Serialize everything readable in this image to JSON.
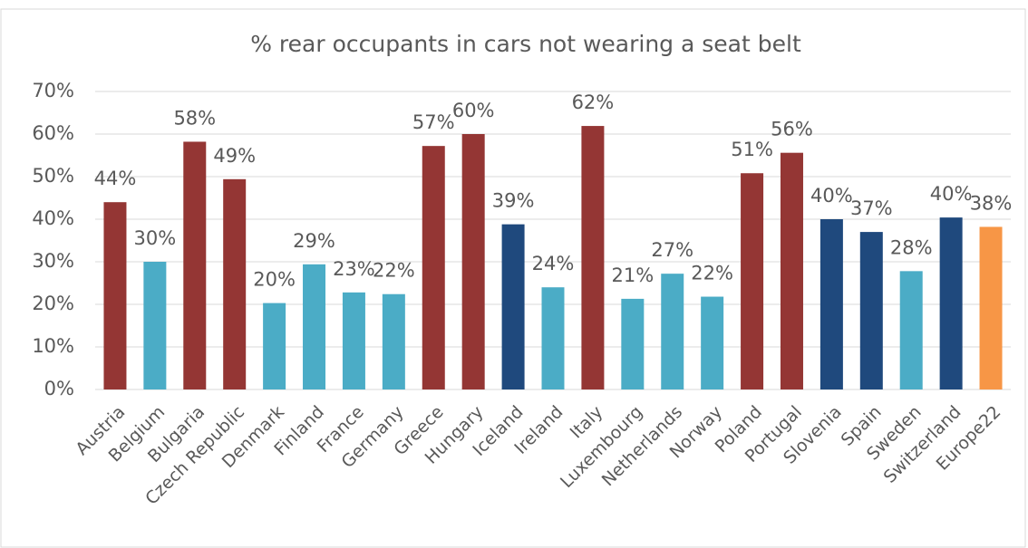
{
  "chart_data": {
    "type": "bar",
    "title": "% rear occupants in cars not wearing a seat belt",
    "categories": [
      "Austria",
      "Belgium",
      "Bulgaria",
      "Czech Republic",
      "Denmark",
      "Finland",
      "France",
      "Germany",
      "Greece",
      "Hungary",
      "Iceland",
      "Ireland",
      "Italy",
      "Luxembourg",
      "Netherlands",
      "Norway",
      "Poland",
      "Portugal",
      "Slovenia",
      "Spain",
      "Sweden",
      "Switzerland",
      "Europe22"
    ],
    "values": [
      44,
      30,
      58.2,
      49.4,
      20.3,
      29.4,
      22.8,
      22.4,
      57.2,
      60,
      38.8,
      24,
      61.9,
      21.3,
      27.2,
      21.8,
      50.8,
      55.6,
      40,
      37,
      27.8,
      40.4,
      38.2
    ],
    "value_labels": [
      "44%",
      "30%",
      "58%",
      "49%",
      "20%",
      "29%",
      "23%",
      "22%",
      "57%",
      "60%",
      "39%",
      "24%",
      "62%",
      "21%",
      "27%",
      "22%",
      "51%",
      "56%",
      "40%",
      "37%",
      "28%",
      "40%",
      "38%"
    ],
    "colors": [
      "#943634",
      "#4bacc6",
      "#943634",
      "#943634",
      "#4bacc6",
      "#4bacc6",
      "#4bacc6",
      "#4bacc6",
      "#943634",
      "#943634",
      "#1f497d",
      "#4bacc6",
      "#943634",
      "#4bacc6",
      "#4bacc6",
      "#4bacc6",
      "#943634",
      "#943634",
      "#1f497d",
      "#1f497d",
      "#4bacc6",
      "#1f497d",
      "#f79646"
    ],
    "ylim": [
      0,
      70
    ],
    "yticks": [
      {
        "value": 0,
        "label": "0%"
      },
      {
        "value": 10,
        "label": "10%"
      },
      {
        "value": 20,
        "label": "20%"
      },
      {
        "value": 30,
        "label": "30%"
      },
      {
        "value": 40,
        "label": "40%"
      },
      {
        "value": 50,
        "label": "50%"
      },
      {
        "value": 60,
        "label": "60%"
      },
      {
        "value": 70,
        "label": "70%"
      }
    ],
    "grid": true
  }
}
